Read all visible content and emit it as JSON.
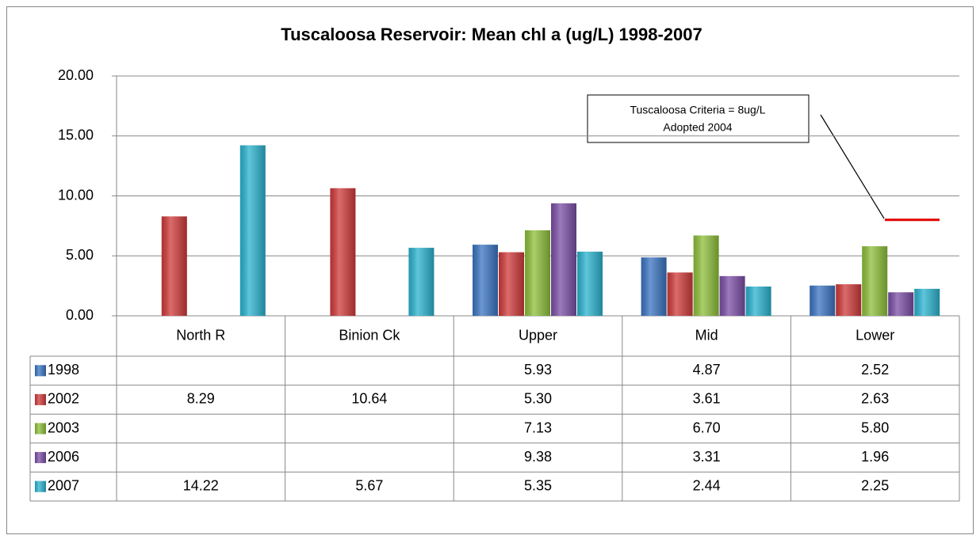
{
  "chart_data": {
    "type": "bar",
    "title": "Tuscaloosa Reservoir: Mean chl a (ug/L) 1998-2007",
    "categories": [
      "North R",
      "Binion Ck",
      "Upper",
      "Mid",
      "Lower"
    ],
    "series": [
      {
        "name": "1998",
        "color": "#3a74c2",
        "values": [
          null,
          null,
          5.93,
          4.87,
          2.52
        ],
        "value_labels": [
          null,
          null,
          "5.93",
          "4.87",
          "2.52"
        ]
      },
      {
        "name": "2002",
        "color": "#d03a3a",
        "values": [
          8.29,
          10.64,
          5.3,
          3.61,
          2.63
        ],
        "value_labels": [
          "8.29",
          "10.64",
          "5.30",
          "3.61",
          "2.63"
        ]
      },
      {
        "name": "2003",
        "color": "#8dbf3a",
        "values": [
          null,
          null,
          7.13,
          6.7,
          5.8
        ],
        "value_labels": [
          null,
          null,
          "7.13",
          "6.70",
          "5.80"
        ]
      },
      {
        "name": "2006",
        "color": "#7b4ea6",
        "values": [
          null,
          null,
          9.38,
          3.31,
          1.96
        ],
        "value_labels": [
          null,
          null,
          "9.38",
          "3.31",
          "1.96"
        ]
      },
      {
        "name": "2007",
        "color": "#2ab3cf",
        "values": [
          14.22,
          5.67,
          5.35,
          2.44,
          2.25
        ],
        "value_labels": [
          "14.22",
          "5.67",
          "5.35",
          "2.44",
          "2.25"
        ]
      }
    ],
    "ylim": [
      0,
      20
    ],
    "yticks": [
      {
        "value": 0,
        "label": "0.00"
      },
      {
        "value": 5,
        "label": "5.00"
      },
      {
        "value": 10,
        "label": "10.00"
      },
      {
        "value": 15,
        "label": "15.00"
      },
      {
        "value": 20,
        "label": "20.00"
      }
    ],
    "grid": true,
    "criteria_line": {
      "value": 8,
      "color": "#e00000"
    },
    "annotation": [
      "Tuscaloosa Criteria = 8ug/L",
      "Adopted 2004"
    ]
  }
}
